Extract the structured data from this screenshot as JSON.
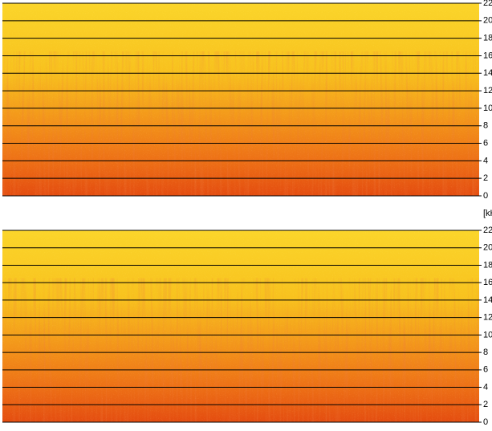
{
  "chart_data": [
    {
      "type": "spectrogram",
      "ylim": [
        0,
        22
      ],
      "yticks": [
        0,
        2,
        4,
        6,
        8,
        10,
        12,
        14,
        16,
        18,
        20,
        22
      ],
      "ylabel": "[kHz]"
    },
    {
      "type": "spectrogram",
      "ylim": [
        0,
        22
      ],
      "yticks": [
        0,
        2,
        4,
        6,
        8,
        10,
        12,
        14,
        16,
        18,
        20,
        22
      ]
    }
  ]
}
